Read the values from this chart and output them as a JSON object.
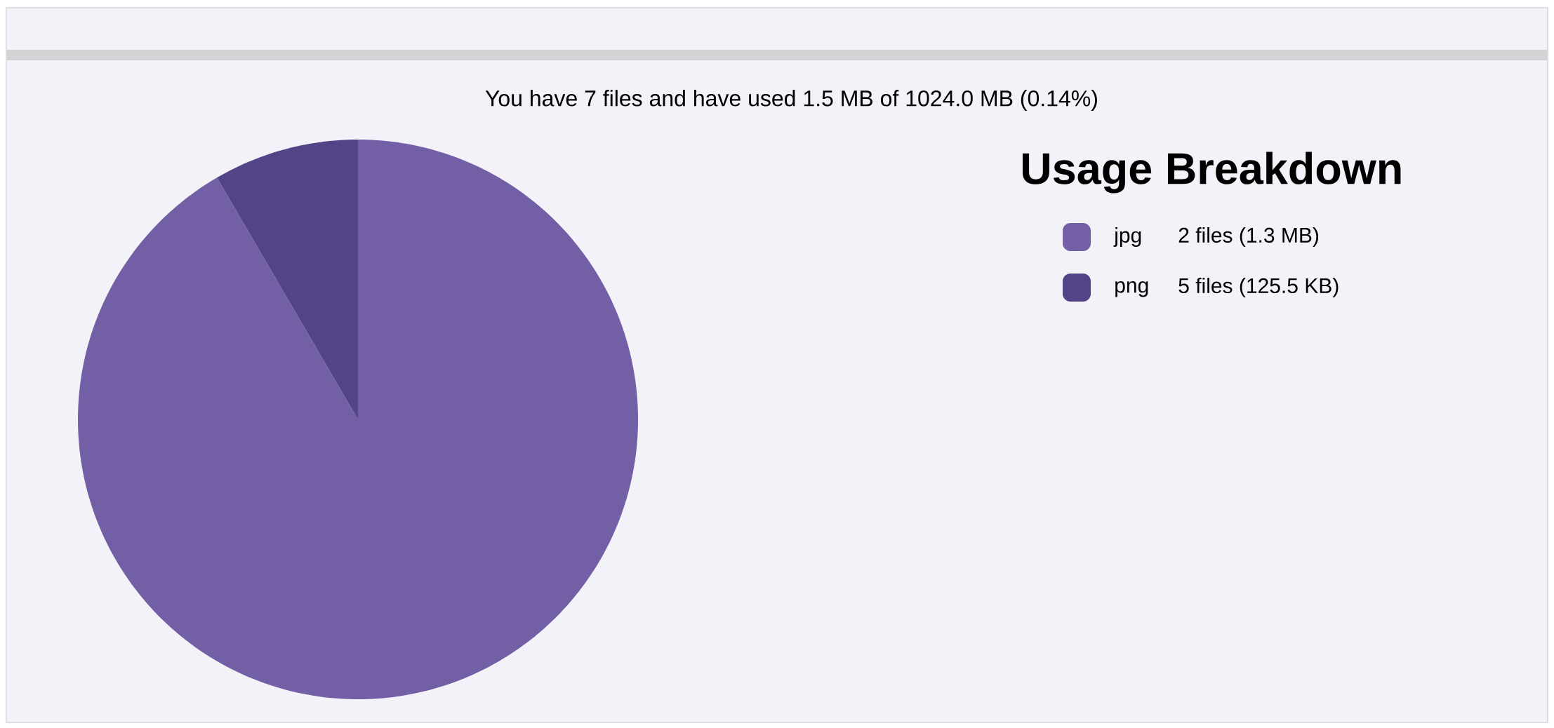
{
  "chart_data": {
    "type": "pie",
    "title": "Usage Breakdown",
    "subtitle": "You have 7 files and have used 1.5 MB of 1024.0 MB (0.14%)",
    "categories": [
      "jpg",
      "png"
    ],
    "values": [
      91.6,
      8.4
    ],
    "colors": [
      "#735fa5",
      "#534487"
    ],
    "annotations": [
      "2 files (1.3 MB)",
      "5 files (125.5 KB)"
    ],
    "legend": "right"
  }
}
